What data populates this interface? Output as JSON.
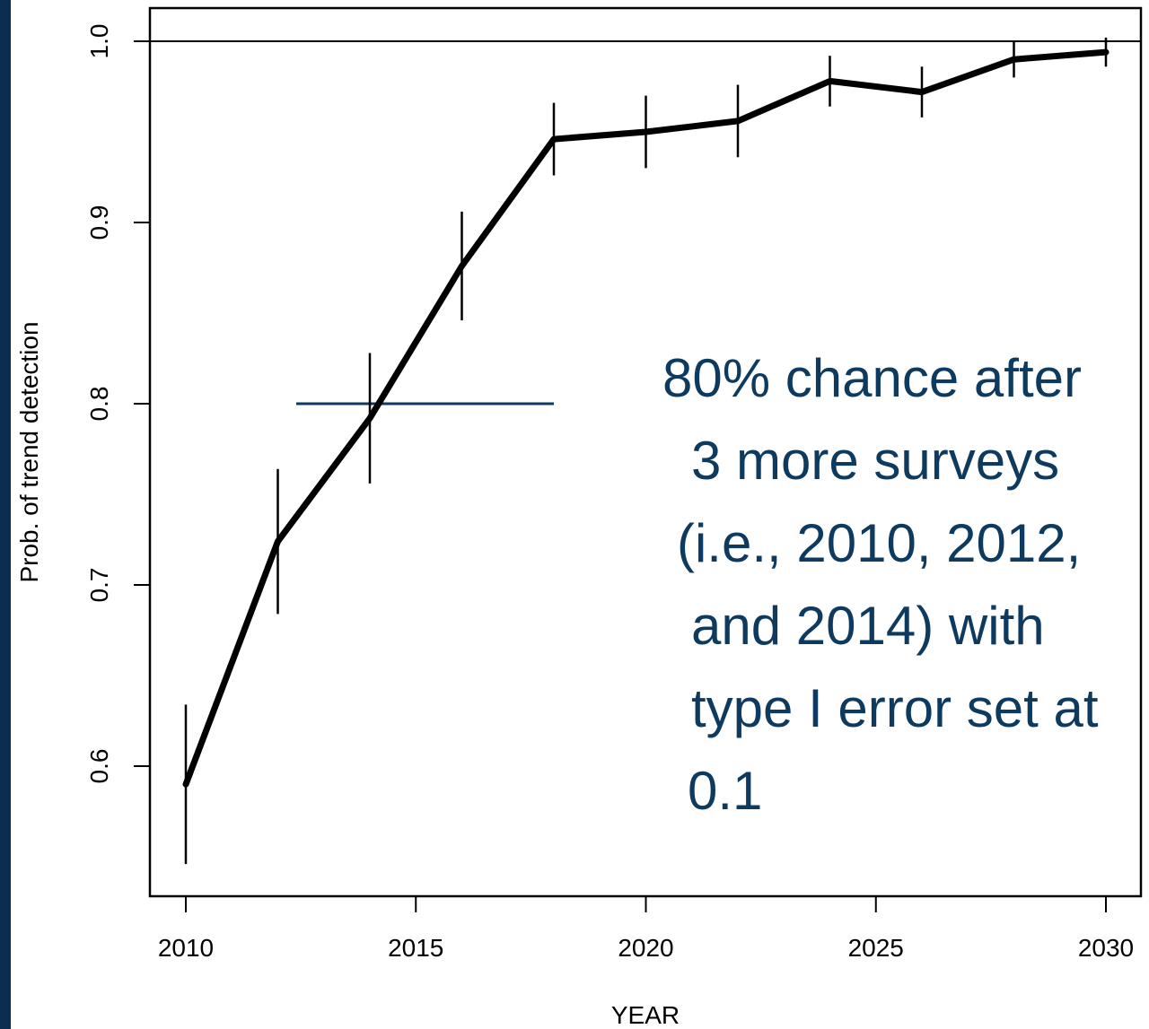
{
  "colors": {
    "accent": "#0f3a5f",
    "band": "#0b2d4f",
    "line": "#000000"
  },
  "chart_data": {
    "type": "line",
    "title": "",
    "xlabel": "YEAR",
    "ylabel": "Prob. of trend detection",
    "xlim": [
      2010,
      2030
    ],
    "ylim": [
      0.55,
      1.0
    ],
    "xticks": [
      "2010",
      "2015",
      "2020",
      "2025",
      "2030"
    ],
    "yticks": [
      "0.6",
      "0.7",
      "0.8",
      "0.9",
      "1.0"
    ],
    "grid": false,
    "x": [
      2010,
      2012,
      2014,
      2016,
      2018,
      2020,
      2022,
      2024,
      2026,
      2028,
      2030
    ],
    "series": [
      {
        "values": [
          0.59,
          0.724,
          0.792,
          0.876,
          0.946,
          0.95,
          0.956,
          0.978,
          0.972,
          0.99,
          0.994
        ],
        "error_low": [
          0.546,
          0.684,
          0.756,
          0.846,
          0.926,
          0.93,
          0.936,
          0.964,
          0.958,
          0.98,
          0.986
        ],
        "error_high": [
          0.634,
          0.764,
          0.828,
          0.906,
          0.966,
          0.97,
          0.976,
          0.992,
          0.986,
          1.0,
          1.002
        ]
      }
    ],
    "reference_lines": [
      {
        "orientation": "horizontal",
        "y": 1.0
      },
      {
        "orientation": "horizontal",
        "y": 0.8,
        "x_from": 2012.4,
        "x_to": 2018
      }
    ],
    "annotation": {
      "lines": [
        "80% chance after",
        "3 more surveys",
        "(i.e., 2010, 2012,",
        "and 2014) with",
        "type I error set at",
        "0.1"
      ]
    }
  }
}
